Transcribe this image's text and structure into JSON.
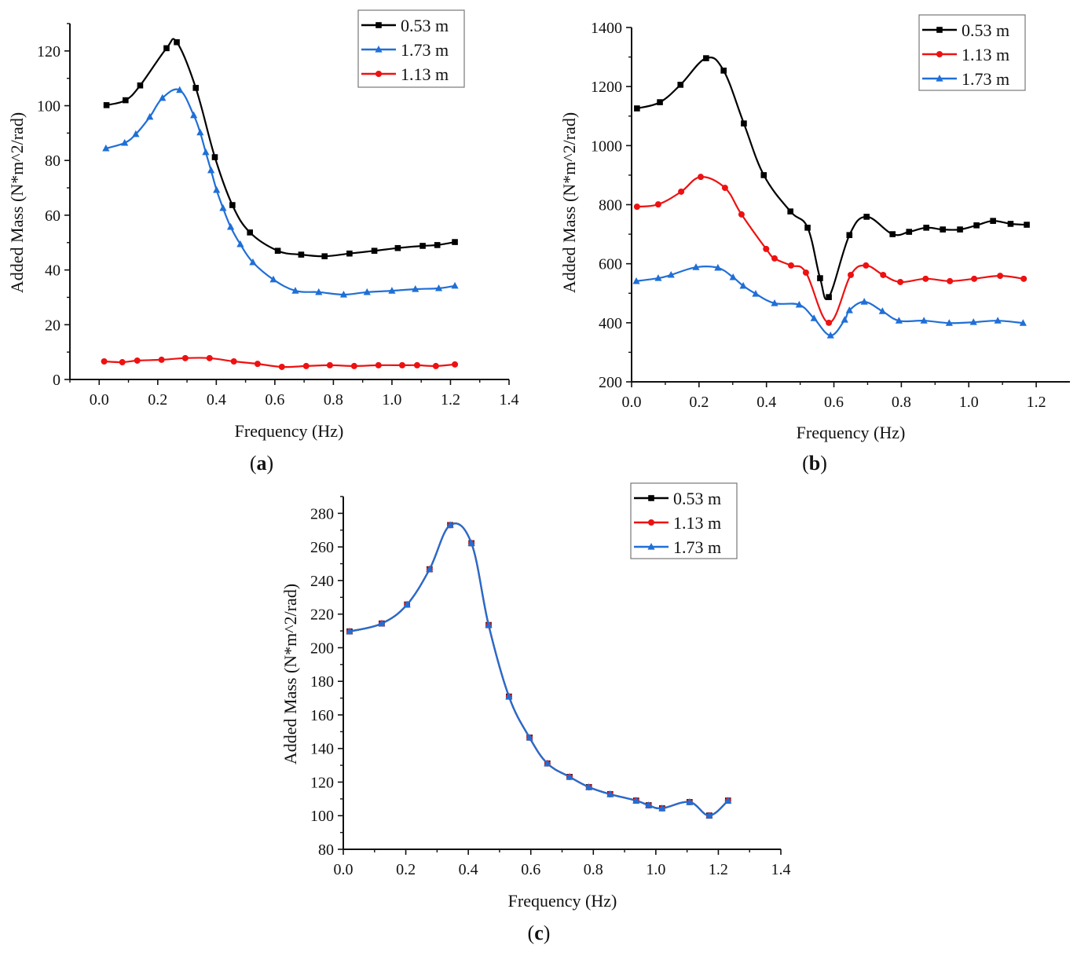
{
  "chart_data": [
    {
      "id": "a",
      "type": "line",
      "panel_label": "a",
      "title": "",
      "xlabel": "Frequency (Hz)",
      "ylabel": "Added Mass (N*m^2/rad)",
      "xlim": [
        -0.1,
        1.4
      ],
      "ylim": [
        0,
        130
      ],
      "xticks": [
        0.0,
        0.2,
        0.4,
        0.6,
        0.8,
        1.0,
        1.2,
        1.4
      ],
      "xtick_labels": [
        "0.0",
        "0.2",
        "0.4",
        "0.6",
        "0.8",
        "1.0",
        "1.2",
        "1.4"
      ],
      "yticks": [
        0,
        20,
        40,
        60,
        80,
        100,
        120
      ],
      "ytick_labels": [
        "0",
        "20",
        "40",
        "60",
        "80",
        "100",
        "120"
      ],
      "grid": false,
      "legend_position": "top-right",
      "series": [
        {
          "name": "0.53 m",
          "color": "#000000",
          "marker": "square",
          "x": [
            0.025,
            0.09,
            0.14,
            0.23,
            0.265,
            0.33,
            0.395,
            0.455,
            0.515,
            0.61,
            0.69,
            0.77,
            0.855,
            0.94,
            1.02,
            1.105,
            1.155,
            1.215
          ],
          "y": [
            100.2,
            102,
            107.4,
            121,
            123.2,
            106.5,
            81.2,
            63.7,
            53.7,
            47,
            45.6,
            45,
            46,
            47,
            48,
            48.8,
            49.1,
            50.2
          ]
        },
        {
          "name": "1.73 m",
          "color": "#1f6fd6",
          "marker": "triangle",
          "x": [
            0.023,
            0.087,
            0.125,
            0.173,
            0.216,
            0.275,
            0.323,
            0.345,
            0.364,
            0.382,
            0.401,
            0.423,
            0.449,
            0.482,
            0.525,
            0.595,
            0.67,
            0.75,
            0.835,
            0.915,
            1.0,
            1.08,
            1.16,
            1.215
          ],
          "y": [
            84.4,
            86.4,
            89.6,
            95.9,
            102.8,
            105.7,
            96.5,
            90.2,
            83.0,
            76.4,
            69.2,
            62.6,
            55.7,
            49.4,
            42.8,
            36.5,
            32.4,
            31.9,
            31.0,
            31.9,
            32.4,
            33.0,
            33.3,
            34.2
          ]
        },
        {
          "name": "1.13 m",
          "color": "#ee1111",
          "marker": "circle",
          "x": [
            0.017,
            0.079,
            0.13,
            0.213,
            0.294,
            0.377,
            0.46,
            0.541,
            0.624,
            0.707,
            0.788,
            0.871,
            0.954,
            1.035,
            1.086,
            1.15,
            1.215
          ],
          "y": [
            6.6,
            6.3,
            6.9,
            7.2,
            7.8,
            7.8,
            6.6,
            5.7,
            4.6,
            4.9,
            5.2,
            4.9,
            5.2,
            5.2,
            5.2,
            4.9,
            5.5
          ]
        }
      ]
    },
    {
      "id": "b",
      "type": "line",
      "panel_label": "b",
      "title": "",
      "xlabel": "Frequency (Hz)",
      "ylabel": "Added Mass (N*m^2/rad)",
      "xlim": [
        0.0,
        1.3
      ],
      "ylim": [
        200,
        1400
      ],
      "xticks": [
        0.0,
        0.2,
        0.4,
        0.6,
        0.8,
        1.0,
        1.2
      ],
      "xtick_labels": [
        "0.0",
        "0.2",
        "0.4",
        "0.6",
        "0.8",
        "1.0",
        "1.2"
      ],
      "yticks": [
        200,
        400,
        600,
        800,
        1000,
        1200,
        1400
      ],
      "ytick_labels": [
        "200",
        "400",
        "600",
        "800",
        "1000",
        "1200",
        "1400"
      ],
      "grid": false,
      "legend_position": "top-right",
      "series": [
        {
          "name": "0.53 m",
          "color": "#000000",
          "marker": "square",
          "x": [
            0.016,
            0.084,
            0.145,
            0.221,
            0.273,
            0.333,
            0.392,
            0.471,
            0.522,
            0.559,
            0.585,
            0.646,
            0.697,
            0.774,
            0.823,
            0.874,
            0.923,
            0.974,
            1.023,
            1.072,
            1.124,
            1.172
          ],
          "y": [
            1126,
            1147,
            1206,
            1296,
            1254,
            1075,
            900,
            777,
            722,
            551,
            487,
            697,
            759,
            700,
            708,
            722,
            716,
            716,
            730,
            745,
            735,
            732
          ]
        },
        {
          "name": "1.13 m",
          "color": "#ee1111",
          "marker": "circle",
          "x": [
            0.016,
            0.079,
            0.147,
            0.205,
            0.277,
            0.326,
            0.399,
            0.424,
            0.473,
            0.517,
            0.585,
            0.65,
            0.695,
            0.746,
            0.797,
            0.872,
            0.944,
            1.016,
            1.093,
            1.163
          ],
          "y": [
            793,
            801,
            844,
            894,
            857,
            767,
            650,
            618,
            594,
            570,
            400,
            562,
            594,
            562,
            538,
            549,
            541,
            549,
            559,
            549
          ]
        },
        {
          "name": "1.73 m",
          "color": "#1f6fd6",
          "marker": "triangle",
          "x": [
            0.014,
            0.079,
            0.117,
            0.191,
            0.256,
            0.301,
            0.331,
            0.368,
            0.424,
            0.497,
            0.541,
            0.59,
            0.632,
            0.646,
            0.69,
            0.744,
            0.793,
            0.867,
            0.942,
            1.014,
            1.086,
            1.161
          ],
          "y": [
            541,
            551,
            562,
            588,
            586,
            554,
            525,
            498,
            466,
            461,
            415,
            357,
            410,
            442,
            471,
            439,
            407,
            407,
            399,
            402,
            407,
            399
          ]
        }
      ]
    },
    {
      "id": "c",
      "type": "line",
      "panel_label": "c",
      "title": "",
      "xlabel": "Frequency (Hz)",
      "ylabel": "Added Mass (N*m^2/rad)",
      "xlim": [
        0.0,
        1.4
      ],
      "ylim": [
        80,
        290
      ],
      "xticks": [
        0.0,
        0.2,
        0.4,
        0.6,
        0.8,
        1.0,
        1.2,
        1.4
      ],
      "xtick_labels": [
        "0.0",
        "0.2",
        "0.4",
        "0.6",
        "0.8",
        "1.0",
        "1.2",
        "1.4"
      ],
      "yticks": [
        80,
        100,
        120,
        140,
        160,
        180,
        200,
        220,
        240,
        260,
        280
      ],
      "ytick_labels": [
        "80",
        "100",
        "120",
        "140",
        "160",
        "180",
        "200",
        "220",
        "240",
        "260",
        "280"
      ],
      "grid": false,
      "legend_position": "top-right",
      "series": [
        {
          "name": "0.53 m",
          "color": "#000000",
          "marker": "square",
          "x": [
            0.02,
            0.123,
            0.204,
            0.276,
            0.342,
            0.41,
            0.465,
            0.53,
            0.596,
            0.653,
            0.724,
            0.786,
            0.854,
            0.937,
            0.977,
            1.02,
            1.108,
            1.171,
            1.231
          ],
          "y": [
            209.7,
            214.4,
            225.7,
            246.7,
            273.0,
            262.2,
            213.5,
            170.9,
            146.5,
            131.1,
            123.1,
            117.0,
            112.8,
            109.0,
            106.2,
            104.4,
            108.1,
            100.1,
            109.0
          ]
        },
        {
          "name": "1.13 m",
          "color": "#ee1111",
          "marker": "circle",
          "x": [
            0.02,
            0.123,
            0.204,
            0.276,
            0.342,
            0.41,
            0.465,
            0.53,
            0.596,
            0.653,
            0.724,
            0.786,
            0.854,
            0.937,
            0.977,
            1.02,
            1.108,
            1.171,
            1.231
          ],
          "y": [
            209.7,
            214.4,
            225.7,
            246.7,
            273.0,
            262.2,
            213.5,
            170.9,
            146.5,
            131.1,
            123.1,
            117.0,
            112.8,
            109.0,
            106.2,
            104.4,
            108.1,
            100.1,
            109.0
          ]
        },
        {
          "name": "1.73 m",
          "color": "#1f6fd6",
          "marker": "triangle",
          "x": [
            0.02,
            0.123,
            0.204,
            0.276,
            0.342,
            0.41,
            0.465,
            0.53,
            0.596,
            0.653,
            0.724,
            0.786,
            0.854,
            0.937,
            0.977,
            1.02,
            1.108,
            1.171,
            1.231
          ],
          "y": [
            209.7,
            214.4,
            225.7,
            246.7,
            273.0,
            262.2,
            213.5,
            170.9,
            146.5,
            131.1,
            123.1,
            117.0,
            112.8,
            109.0,
            106.2,
            104.4,
            108.1,
            100.1,
            109.0
          ]
        }
      ]
    }
  ]
}
